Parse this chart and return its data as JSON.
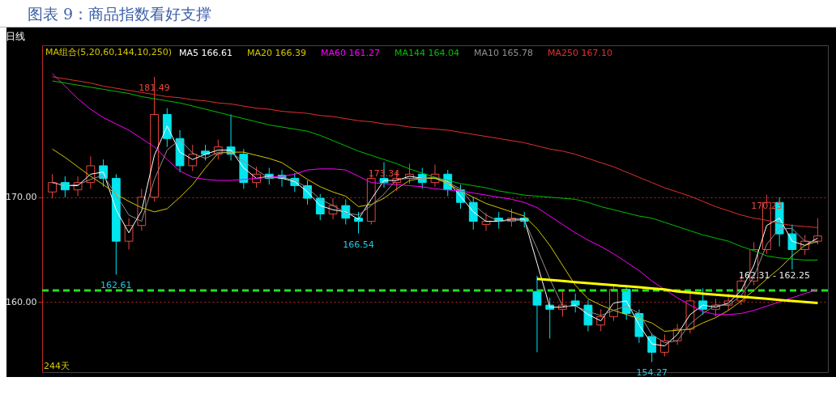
{
  "chart_data": {
    "type": "candlestick",
    "title": "图表 9：商品指数看好支撑",
    "subtitle": "日线",
    "legend_title": "MA组合(5,20,60,144,10,250)",
    "legend": "top left",
    "grid": "y",
    "tick_labels": "y",
    "categories": [
      null,
      null,
      null,
      null,
      null,
      null,
      null,
      null,
      null,
      null,
      null,
      null,
      null,
      null,
      null,
      null,
      null,
      null,
      null,
      null,
      null,
      null,
      null,
      null,
      null,
      null,
      null,
      null,
      null,
      null,
      null,
      null,
      null,
      null,
      null,
      null,
      null,
      null,
      null,
      null,
      null,
      null,
      null,
      null,
      null,
      null,
      null,
      null,
      null,
      null,
      null,
      null,
      null,
      null,
      null,
      null,
      null,
      null,
      null,
      null,
      null
    ],
    "ylim": [
      153.3,
      184.5
    ],
    "yticks": [
      {
        "value": 160,
        "label": "160.00"
      },
      {
        "value": 170,
        "label": "170.00"
      }
    ],
    "ohlc": [
      [
        170.5,
        172.2,
        169.9,
        171.4
      ],
      [
        171.4,
        172.0,
        170.0,
        170.7
      ],
      [
        170.7,
        172.0,
        170.1,
        171.4
      ],
      [
        171.4,
        173.9,
        170.8,
        173.0
      ],
      [
        173.0,
        173.6,
        171.0,
        171.8
      ],
      [
        171.8,
        172.2,
        162.61,
        165.8
      ],
      [
        165.8,
        168.0,
        165.0,
        167.3
      ],
      [
        167.3,
        170.8,
        166.8,
        170.0
      ],
      [
        170.0,
        181.49,
        169.6,
        177.9
      ],
      [
        177.9,
        178.5,
        174.8,
        175.6
      ],
      [
        175.6,
        176.4,
        172.4,
        173.0
      ],
      [
        173.0,
        175.0,
        172.5,
        174.1
      ],
      [
        174.4,
        175.0,
        173.5,
        174.1
      ],
      [
        174.1,
        175.5,
        173.6,
        174.8
      ],
      [
        174.8,
        177.9,
        173.5,
        174.1
      ],
      [
        174.1,
        174.6,
        170.8,
        171.4
      ],
      [
        171.4,
        172.9,
        170.9,
        172.2
      ],
      [
        172.2,
        172.8,
        171.2,
        171.8
      ],
      [
        172.1,
        172.6,
        171.0,
        171.8
      ],
      [
        171.8,
        172.3,
        170.5,
        171.1
      ],
      [
        171.1,
        171.6,
        169.3,
        169.9
      ],
      [
        169.9,
        170.3,
        167.8,
        168.4
      ],
      [
        168.4,
        169.9,
        167.9,
        169.2
      ],
      [
        169.2,
        169.8,
        167.4,
        168.0
      ],
      [
        168.0,
        168.6,
        166.54,
        167.7
      ],
      [
        167.7,
        172.6,
        167.4,
        171.8
      ],
      [
        171.8,
        173.34,
        170.9,
        171.4
      ],
      [
        171.4,
        172.5,
        170.6,
        171.8
      ],
      [
        171.8,
        173.2,
        171.3,
        172.2
      ],
      [
        172.2,
        172.8,
        170.8,
        171.4
      ],
      [
        171.4,
        173.1,
        171.0,
        172.2
      ],
      [
        172.2,
        172.6,
        170.1,
        170.7
      ],
      [
        170.7,
        171.2,
        168.9,
        169.5
      ],
      [
        169.5,
        170.0,
        166.9,
        167.7
      ],
      [
        167.4,
        168.5,
        166.8,
        167.7
      ],
      [
        168.0,
        168.6,
        167.0,
        167.7
      ],
      [
        167.7,
        168.9,
        167.2,
        168.0
      ],
      [
        168.0,
        168.6,
        167.1,
        167.7
      ],
      [
        161.0,
        162.5,
        155.2,
        159.7
      ],
      [
        159.7,
        160.4,
        156.5,
        159.3
      ],
      [
        159.3,
        161.2,
        158.6,
        159.7
      ],
      [
        160.1,
        160.8,
        159.0,
        159.7
      ],
      [
        159.7,
        160.2,
        157.2,
        157.8
      ],
      [
        157.8,
        159.3,
        157.2,
        158.6
      ],
      [
        158.6,
        161.7,
        158.2,
        161.2
      ],
      [
        161.2,
        161.4,
        158.3,
        158.9
      ],
      [
        158.9,
        159.3,
        156.1,
        156.7
      ],
      [
        156.7,
        157.0,
        154.27,
        155.2
      ],
      [
        155.2,
        156.9,
        154.8,
        156.3
      ],
      [
        156.3,
        157.9,
        155.9,
        157.4
      ],
      [
        157.4,
        161.0,
        157.0,
        160.1
      ],
      [
        160.1,
        161.3,
        158.8,
        159.3
      ],
      [
        159.3,
        160.3,
        158.6,
        159.7
      ],
      [
        159.7,
        160.8,
        159.2,
        160.1
      ],
      [
        160.1,
        162.5,
        159.7,
        162.0
      ],
      [
        162.0,
        165.7,
        161.6,
        165.0
      ],
      [
        165.0,
        170.23,
        164.6,
        169.5
      ],
      [
        169.5,
        170.0,
        165.3,
        166.5
      ],
      [
        166.5,
        167.4,
        163.1,
        165.0
      ],
      [
        165.0,
        166.4,
        164.5,
        165.8
      ],
      [
        165.8,
        168.0,
        165.5,
        166.3
      ]
    ],
    "colors": [
      "#e8453c",
      "#00e5ee",
      "#e8453c",
      "#e8453c",
      "#00e5ee",
      "#00e5ee",
      "#e8453c",
      "#e8453c",
      "#e8453c",
      "#00e5ee",
      "#00e5ee",
      "#e8453c",
      "#00e5ee",
      "#e8453c",
      "#00e5ee",
      "#00e5ee",
      "#e8453c",
      "#00e5ee",
      "#00e5ee",
      "#00e5ee",
      "#00e5ee",
      "#00e5ee",
      "#e8453c",
      "#00e5ee",
      "#00e5ee",
      "#e8453c",
      "#00e5ee",
      "#e8453c",
      "#e8453c",
      "#00e5ee",
      "#e8453c",
      "#00e5ee",
      "#00e5ee",
      "#00e5ee",
      "#e8453c",
      "#00e5ee",
      "#e8453c",
      "#00e5ee",
      "#00e5ee",
      "#00e5ee",
      "#e8453c",
      "#00e5ee",
      "#00e5ee",
      "#e8453c",
      "#e8453c",
      "#00e5ee",
      "#00e5ee",
      "#00e5ee",
      "#e8453c",
      "#e8453c",
      "#e8453c",
      "#00e5ee",
      "#e8453c",
      "#e8453c",
      "#e8453c",
      "#e8453c",
      "#e8453c",
      "#00e5ee",
      "#00e5ee",
      "#e8453c",
      "#e8453c"
    ],
    "series": [
      {
        "type": "line",
        "name": "MA5 166.61",
        "color": "#ffffff",
        "values": [
          171.4,
          171.1,
          171.1,
          172.2,
          172.4,
          168.8,
          166.6,
          168.7,
          174.0,
          176.8,
          174.3,
          173.6,
          174.1,
          174.5,
          174.5,
          172.8,
          171.8,
          172.0,
          171.8,
          171.5,
          170.5,
          169.2,
          168.8,
          168.6,
          167.9,
          169.8,
          171.6,
          171.6,
          172.0,
          171.8,
          171.8,
          171.5,
          170.1,
          168.6,
          167.7,
          167.7,
          167.9,
          167.9,
          163.7,
          159.5,
          159.5,
          159.7,
          158.8,
          158.2,
          159.9,
          160.1,
          157.8,
          156.0,
          155.8,
          156.9,
          158.8,
          159.7,
          159.5,
          159.9,
          161.1,
          163.5,
          167.3,
          168.0,
          165.8,
          165.4,
          166.1
        ]
      },
      {
        "type": "line",
        "name": "MA20 166.39",
        "color": "#d4c800",
        "values": [
          174.6,
          173.8,
          172.9,
          172.0,
          171.2,
          170.3,
          169.6,
          169.0,
          168.6,
          168.9,
          170.0,
          171.2,
          172.8,
          174.2,
          174.3,
          174.3,
          174.0,
          173.7,
          173.3,
          172.5,
          171.7,
          171.0,
          170.5,
          170.1,
          169.1,
          169.3,
          169.9,
          170.8,
          171.6,
          171.8,
          171.8,
          171.3,
          170.6,
          170.0,
          169.4,
          169.0,
          168.6,
          168.2,
          167.0,
          165.4,
          163.5,
          161.6,
          160.3,
          159.7,
          159.2,
          158.8,
          158.4,
          158.0,
          157.2,
          157.3,
          157.4,
          158.0,
          158.5,
          159.2,
          160.1,
          161.1,
          162.2,
          163.2,
          164.4,
          165.4,
          165.8
        ]
      },
      {
        "type": "line",
        "name": "MA60 161.27",
        "color": "#ff00ff",
        "values": [
          181.8,
          180.6,
          179.4,
          178.4,
          177.6,
          177.0,
          176.4,
          175.6,
          174.8,
          173.6,
          172.5,
          171.9,
          171.7,
          171.6,
          171.6,
          171.7,
          171.8,
          171.9,
          172.0,
          172.2,
          172.6,
          172.7,
          172.7,
          172.6,
          172.0,
          171.4,
          171.3,
          171.2,
          171.1,
          171.0,
          170.8,
          170.7,
          170.6,
          170.4,
          170.2,
          170.0,
          169.8,
          169.5,
          169.0,
          168.2,
          167.4,
          166.6,
          165.9,
          165.3,
          164.6,
          163.8,
          163.0,
          162.0,
          161.2,
          160.4,
          159.7,
          159.1,
          158.8,
          158.8,
          158.9,
          159.2,
          159.6,
          160.0,
          160.4,
          160.8,
          161.2
        ]
      },
      {
        "type": "line",
        "name": "MA144 164.04",
        "color": "#00c000",
        "values": [
          181.1,
          180.9,
          180.7,
          180.5,
          180.3,
          180.1,
          179.9,
          179.6,
          179.4,
          179.2,
          179.0,
          178.7,
          178.4,
          178.1,
          177.8,
          177.5,
          177.2,
          176.9,
          176.7,
          176.5,
          176.3,
          175.9,
          175.4,
          174.9,
          174.4,
          174.0,
          173.6,
          173.2,
          172.7,
          172.3,
          171.9,
          171.6,
          171.3,
          171.1,
          170.9,
          170.6,
          170.4,
          170.2,
          170.1,
          170.0,
          169.9,
          169.8,
          169.5,
          169.1,
          168.8,
          168.5,
          168.2,
          168.0,
          167.6,
          167.2,
          166.8,
          166.4,
          166.1,
          165.8,
          165.3,
          164.9,
          164.4,
          164.2,
          164.1,
          164.0,
          164.0
        ]
      },
      {
        "type": "line",
        "name": "MA10 165.78",
        "color": "#909090",
        "values": [
          171.4,
          171.1,
          171.2,
          171.7,
          172.1,
          170.2,
          168.3,
          167.7,
          171.7,
          174.5,
          175.5,
          174.2,
          173.7,
          174.3,
          174.3,
          173.4,
          172.6,
          171.8,
          171.9,
          171.6,
          170.9,
          169.8,
          169.2,
          168.5,
          168.3,
          169.2,
          170.3,
          171.7,
          171.8,
          171.8,
          171.9,
          171.4,
          170.8,
          169.3,
          168.3,
          167.7,
          167.8,
          167.8,
          165.1,
          162.2,
          159.6,
          159.6,
          159.1,
          158.7,
          159.2,
          159.6,
          158.9,
          156.9,
          156.1,
          156.3,
          157.9,
          158.9,
          159.7,
          159.7,
          160.6,
          162.4,
          165.5,
          167.0,
          167.0,
          165.8,
          165.7
        ]
      },
      {
        "type": "line",
        "name": "MA250 167.10",
        "color": "#e03030",
        "values": [
          181.5,
          181.3,
          181.1,
          180.9,
          180.6,
          180.4,
          180.2,
          180.0,
          179.8,
          179.6,
          179.5,
          179.3,
          179.2,
          179.0,
          178.9,
          178.7,
          178.5,
          178.4,
          178.2,
          178.1,
          178.0,
          177.8,
          177.7,
          177.5,
          177.3,
          177.2,
          177.0,
          176.9,
          176.7,
          176.6,
          176.5,
          176.4,
          176.2,
          176.0,
          175.8,
          175.6,
          175.4,
          175.2,
          174.9,
          174.6,
          174.4,
          174.1,
          173.7,
          173.3,
          172.9,
          172.4,
          171.9,
          171.4,
          170.9,
          170.5,
          170.1,
          169.6,
          169.1,
          168.7,
          168.3,
          168.0,
          167.8,
          167.5,
          167.3,
          167.2,
          167.1
        ]
      },
      {
        "type": "line",
        "color": "#ffff00",
        "values": [
          null,
          null,
          null,
          null,
          null,
          null,
          null,
          null,
          null,
          null,
          null,
          null,
          null,
          null,
          null,
          null,
          null,
          null,
          null,
          null,
          null,
          null,
          null,
          null,
          null,
          null,
          null,
          null,
          null,
          null,
          null,
          null,
          null,
          null,
          null,
          null,
          null,
          null,
          162.2,
          162.1,
          162.0,
          161.9,
          161.8,
          161.7,
          161.6,
          161.5,
          161.4,
          161.3,
          161.2,
          161.0,
          160.9,
          160.8,
          160.7,
          160.6,
          160.5,
          160.4,
          160.3,
          160.2,
          160.1,
          160.0,
          159.9
        ]
      }
    ],
    "ref_lines": [
      {
        "axis": "y",
        "value": 161.1,
        "color": "#22dd22",
        "line_style": "dashed"
      }
    ],
    "annotations": [
      {
        "text": "181.49",
        "y": 181.49
      },
      {
        "text": "173.34",
        "y": 173.34
      },
      {
        "text": "166.54",
        "y": 166.54
      },
      {
        "text": "162.61",
        "y": 162.61
      },
      {
        "text": "154.27",
        "y": 154.27
      },
      {
        "text": "170.23",
        "y": 170.23
      },
      "244天",
      "162.31 - 162.25"
    ]
  }
}
